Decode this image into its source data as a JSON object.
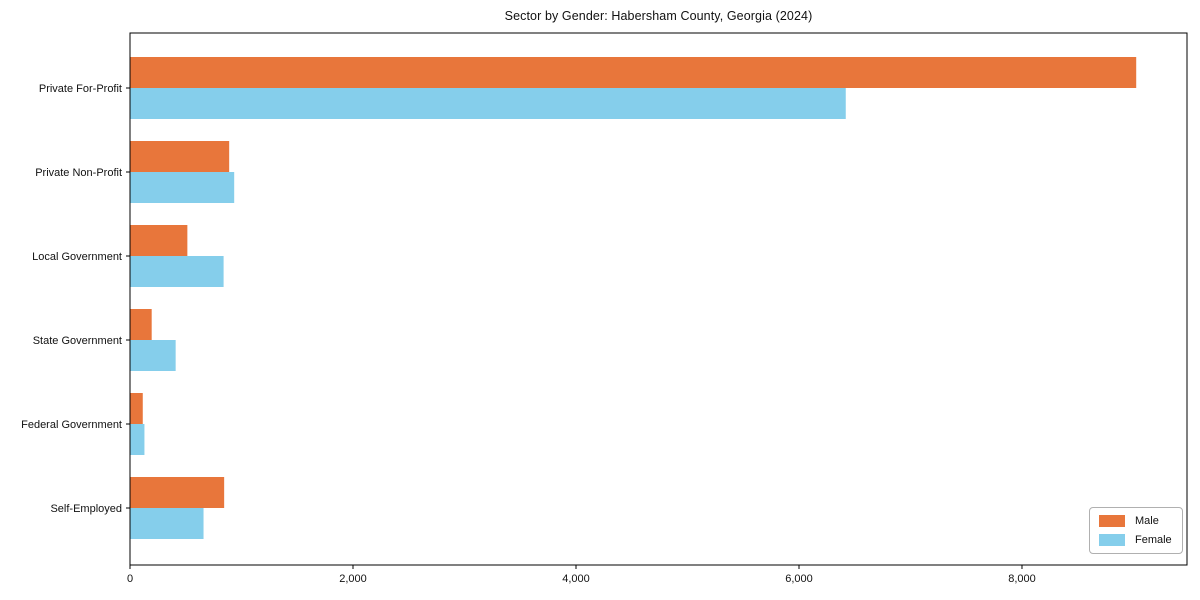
{
  "chart_data": {
    "type": "bar",
    "orientation": "horizontal",
    "title": "Sector by Gender: Habersham County, Georgia (2024)",
    "categories": [
      "Private For-Profit",
      "Private Non-Profit",
      "Local Government",
      "State Government",
      "Federal Government",
      "Self-Employed"
    ],
    "series": [
      {
        "name": "Male",
        "color": "#E8763B",
        "values": [
          9020,
          885,
          510,
          190,
          110,
          840
        ]
      },
      {
        "name": "Female",
        "color": "#85CEEB",
        "values": [
          6415,
          930,
          835,
          405,
          125,
          655
        ]
      }
    ],
    "xlabel": "",
    "ylabel": "",
    "xlim": [
      0,
      9480
    ],
    "x_ticks": [
      {
        "value": 0,
        "label": "0"
      },
      {
        "value": 2000,
        "label": "2,000"
      },
      {
        "value": 4000,
        "label": "4,000"
      },
      {
        "value": 6000,
        "label": "6,000"
      },
      {
        "value": 8000,
        "label": "8,000"
      }
    ],
    "grid": false,
    "legend_position": "lower right",
    "legend_labels": [
      "Male",
      "Female"
    ],
    "axis_color": "#000000",
    "text_color": "#111111",
    "background": "#ffffff"
  }
}
